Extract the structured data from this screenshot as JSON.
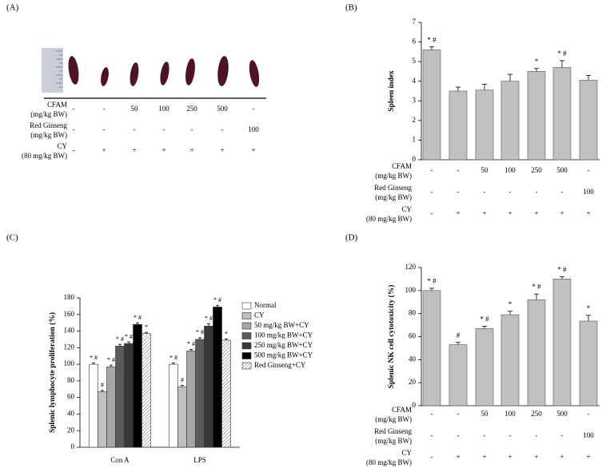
{
  "photo_panel": {
    "panel_label": "(A)",
    "treatment_table": [
      {
        "label": [
          "CFAM",
          "(mg/kg BW)"
        ],
        "values": [
          "-",
          "-",
          "50",
          "100",
          "250",
          "500",
          "-"
        ]
      },
      {
        "label": [
          "Red Ginseng",
          "(mg/kg BW)"
        ],
        "values": [
          "-",
          "-",
          "-",
          "-",
          "-",
          "-",
          "100"
        ]
      },
      {
        "label": [
          "CY",
          "(80 mg/kg BW)"
        ],
        "values": [
          "-",
          "+",
          "+",
          "+",
          "+",
          "+",
          "+"
        ]
      }
    ]
  },
  "chart_data": [
    {
      "type": "bar",
      "panel_label": "(B)",
      "ylabel": "Spleen index",
      "color": "#c0c0c0",
      "values": [
        5.6,
        3.5,
        3.55,
        4.0,
        4.5,
        4.7,
        4.05
      ],
      "errors": [
        0.15,
        0.2,
        0.3,
        0.35,
        0.15,
        0.35,
        0.25
      ],
      "annotations": [
        "* #",
        null,
        null,
        null,
        "*",
        "* #",
        null
      ],
      "ylim": [
        0,
        7
      ],
      "yticks": [
        0,
        1,
        2,
        3,
        4,
        5,
        6,
        7
      ],
      "treatment_table": [
        {
          "label": [
            "CFAM",
            "(mg/kg BW)"
          ],
          "values": [
            "-",
            "-",
            "50",
            "100",
            "250",
            "500",
            "-"
          ]
        },
        {
          "label": [
            "Red Ginseng",
            "(mg/kg BW)"
          ],
          "values": [
            "-",
            "-",
            "-",
            "-",
            "-",
            "-",
            "100"
          ]
        },
        {
          "label": [
            "CY",
            "(80 mg/kg BW)"
          ],
          "values": [
            "-",
            "+",
            "+",
            "+",
            "+",
            "+",
            "+"
          ]
        }
      ]
    },
    {
      "type": "grouped_bar",
      "panel_label": "(C)",
      "ylabel": "Splenic lymphocyte proliferation (%)",
      "categories": [
        "Con A",
        "LPS"
      ],
      "legend": "upper right",
      "series": [
        {
          "name": "Normal",
          "color": "#ffffff",
          "values": [
            100,
            100
          ],
          "errors": [
            1.5,
            1.5
          ],
          "annotations": [
            "* #",
            "* #"
          ]
        },
        {
          "name": "CY",
          "color": "#c0c0c0",
          "values": [
            67,
            73
          ],
          "errors": [
            1.5,
            1.5
          ],
          "annotations": [
            "#",
            "#"
          ]
        },
        {
          "name": "50 mg/kg BW+CY",
          "color": "#a6a6a6",
          "values": [
            97,
            116
          ],
          "errors": [
            2,
            2
          ],
          "annotations": [
            "* #",
            "* #"
          ]
        },
        {
          "name": "100 mg/kg BW+CY",
          "color": "#5a5a5a",
          "values": [
            122,
            130
          ],
          "errors": [
            2,
            2
          ],
          "annotations": [
            "* #",
            "* #"
          ]
        },
        {
          "name": "250 mg/kg BW+CY",
          "color": "#383838",
          "values": [
            125,
            146
          ],
          "errors": [
            2,
            3
          ],
          "annotations": [
            "* #",
            "* #"
          ]
        },
        {
          "name": "500 mg/kg BW+CY",
          "color": "#000000",
          "values": [
            148,
            169
          ],
          "errors": [
            2,
            2
          ],
          "annotations": [
            "* #",
            "* #"
          ]
        },
        {
          "name": "Red Ginseng+CY",
          "color": "#ffffff",
          "hatch": true,
          "values": [
            137,
            129
          ],
          "errors": [
            1.5,
            1.5
          ],
          "annotations": [
            "*",
            "*"
          ]
        }
      ],
      "ylim": [
        0,
        180
      ],
      "yticks": [
        0,
        20,
        40,
        60,
        80,
        100,
        120,
        140,
        160,
        180
      ]
    },
    {
      "type": "bar",
      "panel_label": "(D)",
      "ylabel": "Splenic NK cell cytotoxicity (%)",
      "color": "#c0c0c0",
      "values": [
        100,
        53,
        67,
        79,
        92,
        110,
        73.5
      ],
      "errors": [
        2,
        2,
        2,
        3,
        5,
        2,
        5
      ],
      "annotations": [
        "* #",
        "#",
        "* #",
        "*",
        "* #",
        "* #",
        "*"
      ],
      "ylim": [
        0,
        120
      ],
      "yticks": [
        0,
        20,
        40,
        60,
        80,
        100,
        120
      ],
      "treatment_table": [
        {
          "label": [
            "CFAM",
            "(mg/kg BW)"
          ],
          "values": [
            "-",
            "-",
            "50",
            "100",
            "250",
            "500",
            "-"
          ]
        },
        {
          "label": [
            "Red Ginseng",
            "(mg/kg BW)"
          ],
          "values": [
            "-",
            "-",
            "-",
            "-",
            "-",
            "-",
            "100"
          ]
        },
        {
          "label": [
            "CY",
            "(80 mg/kg BW)"
          ],
          "values": [
            "-",
            "+",
            "+",
            "+",
            "+",
            "+",
            "+"
          ]
        }
      ]
    }
  ]
}
